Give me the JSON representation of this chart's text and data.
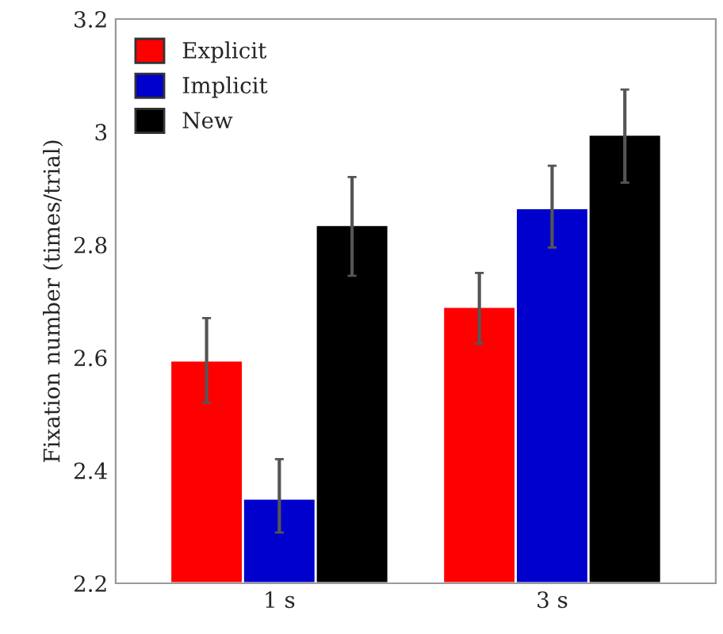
{
  "chart_data": {
    "type": "bar",
    "ylabel": "Fixation number (times/trial)",
    "categories": [
      "1 s",
      "3 s"
    ],
    "series": [
      {
        "name": "Explicit",
        "color": "#ff0000",
        "values": [
          2.595,
          2.69
        ],
        "errors": [
          [
            2.52,
            2.67
          ],
          [
            2.625,
            2.75
          ]
        ]
      },
      {
        "name": "Implicit",
        "color": "#0000cc",
        "values": [
          2.35,
          2.865
        ],
        "errors": [
          [
            2.29,
            2.42
          ],
          [
            2.795,
            2.94
          ]
        ]
      },
      {
        "name": "New",
        "color": "#000000",
        "values": [
          2.835,
          2.995
        ],
        "errors": [
          [
            2.745,
            2.92
          ],
          [
            2.91,
            3.075
          ]
        ]
      }
    ],
    "ylim": [
      2.2,
      3.2
    ],
    "yticks": [
      2.2,
      2.4,
      2.6,
      2.8,
      3,
      3.2
    ],
    "grid": false,
    "legend": "top left"
  }
}
